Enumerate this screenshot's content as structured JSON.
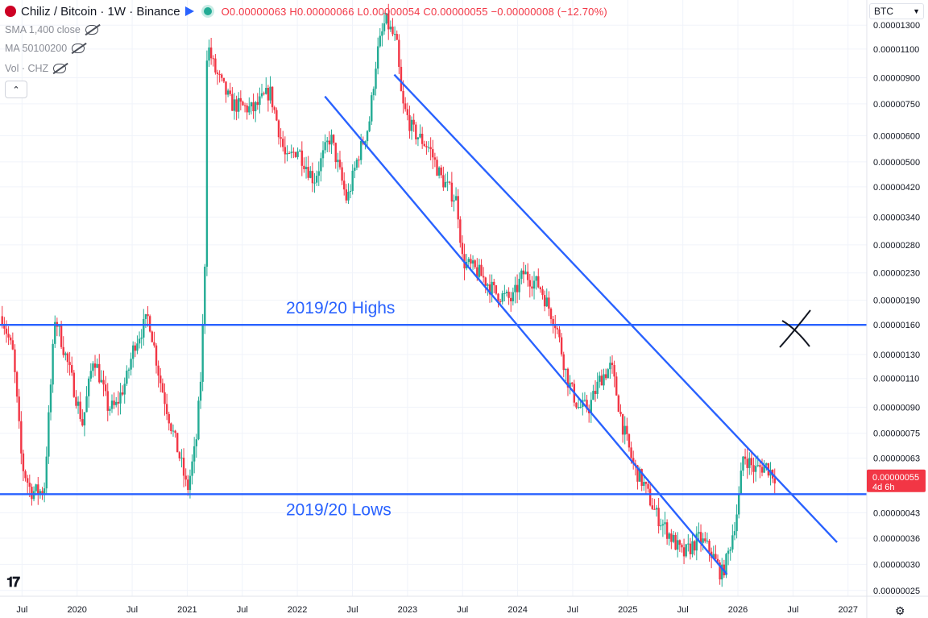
{
  "header": {
    "title": "Chiliz / Bitcoin · 1W · Binance",
    "ohlc": "O0.00000063 H0.00000066 L0.00000054 C0.00000055 −0.00000008 (−12.70%)"
  },
  "indicators": [
    "SMA 1,400 close",
    "MA 50100200",
    "Vol · CHZ"
  ],
  "currency": "BTC",
  "price_label": {
    "value": "0.00000055",
    "countdown": "4d 6h"
  },
  "colors": {
    "up": "#22ab94",
    "down": "#f23645",
    "lines": "#2962ff",
    "text": "#131722",
    "grid": "#f0f3fa"
  },
  "icons": [
    "chiliz-logo-icon",
    "flag-icon",
    "status-dot-icon",
    "eye-off-icon",
    "chevron-up-icon",
    "chevron-down-icon",
    "tradingview-logo-icon",
    "settings-icon"
  ],
  "chart_data": {
    "type": "candlestick",
    "title": "Chiliz / Bitcoin · 1W · Binance",
    "log_scale": true,
    "y_ticks": [
      2.5e-07,
      3e-07,
      3.6e-07,
      4.3e-07,
      6.3e-07,
      7.5e-07,
      9e-07,
      1.1e-06,
      1.3e-06,
      1.6e-06,
      1.9e-06,
      2.3e-06,
      2.8e-06,
      3.4e-06,
      4.2e-06,
      5e-06,
      6e-06,
      7.5e-06,
      9e-06,
      1.1e-05,
      1.3e-05
    ],
    "y_tick_labels": [
      "0.00000025",
      "0.00000030",
      "0.00000036",
      "0.00000043",
      "0.00000063",
      "0.00000075",
      "0.00000090",
      "0.00000110",
      "0.00000130",
      "0.00000160",
      "0.00000190",
      "0.00000230",
      "0.00000280",
      "0.00000340",
      "0.00000420",
      "0.00000500",
      "0.00000600",
      "0.00000750",
      "0.00000900",
      "0.00001100",
      "0.00001300"
    ],
    "x_ticks": [
      2019.5,
      2020.0,
      2020.5,
      2021.0,
      2021.5,
      2022.0,
      2022.5,
      2023.0,
      2023.5,
      2024.0,
      2024.5,
      2025.0,
      2025.5,
      2026.0,
      2026.5,
      2027.0
    ],
    "x_tick_labels": [
      "Jul",
      "2020",
      "Jul",
      "2021",
      "Jul",
      "2022",
      "Jul",
      "2023",
      "Jul",
      "2024",
      "Jul",
      "2025",
      "Jul",
      "2026",
      "Jul",
      "2027"
    ],
    "xlim": [
      2019.3,
      2027.17
    ],
    "ylim": [
      2.4e-07,
      1.55e-05
    ],
    "trace": [
      [
        2019.32,
        1.7e-06
      ],
      [
        2019.42,
        1.3e-06
      ],
      [
        2019.5,
        6e-07
      ],
      [
        2019.58,
        5e-07
      ],
      [
        2019.7,
        5e-07
      ],
      [
        2019.8,
        1.7e-06
      ],
      [
        2019.95,
        1.1e-06
      ],
      [
        2020.05,
        8e-07
      ],
      [
        2020.15,
        1.3e-06
      ],
      [
        2020.28,
        9e-07
      ],
      [
        2020.35,
        9e-07
      ],
      [
        2020.45,
        1.1e-06
      ],
      [
        2020.52,
        1.4e-06
      ],
      [
        2020.65,
        1.7e-06
      ],
      [
        2020.75,
        1.1e-06
      ],
      [
        2020.85,
        8e-07
      ],
      [
        2020.95,
        6e-07
      ],
      [
        2021.0,
        5e-07
      ],
      [
        2021.08,
        7e-07
      ],
      [
        2021.13,
        1.2e-06
      ],
      [
        2021.16,
        2.5e-06
      ],
      [
        2021.18,
        1.15e-05
      ],
      [
        2021.25,
        9.5e-06
      ],
      [
        2021.4,
        7.5e-06
      ],
      [
        2021.6,
        7.2e-06
      ],
      [
        2021.75,
        8.2e-06
      ],
      [
        2021.9,
        5e-06
      ],
      [
        2022.0,
        5.5e-06
      ],
      [
        2022.15,
        4.4e-06
      ],
      [
        2022.3,
        6e-06
      ],
      [
        2022.45,
        3.8e-06
      ],
      [
        2022.55,
        5.2e-06
      ],
      [
        2022.65,
        6.5e-06
      ],
      [
        2022.72,
        1.05e-05
      ],
      [
        2022.8,
        1.35e-05
      ],
      [
        2022.9,
        1.15e-05
      ],
      [
        2022.95,
        7.5e-06
      ],
      [
        2023.05,
        6.2e-06
      ],
      [
        2023.2,
        5.5e-06
      ],
      [
        2023.3,
        4.5e-06
      ],
      [
        2023.45,
        3.8e-06
      ],
      [
        2023.5,
        2.5e-06
      ],
      [
        2023.65,
        2.3e-06
      ],
      [
        2023.8,
        2e-06
      ],
      [
        2023.95,
        1.9e-06
      ],
      [
        2024.05,
        2.3e-06
      ],
      [
        2024.2,
        2.1e-06
      ],
      [
        2024.35,
        1.6e-06
      ],
      [
        2024.45,
        1.1e-06
      ],
      [
        2024.55,
        9e-07
      ],
      [
        2024.65,
        9e-07
      ],
      [
        2024.75,
        1.1e-06
      ],
      [
        2024.85,
        1.2e-06
      ],
      [
        2024.95,
        8e-07
      ],
      [
        2025.05,
        6e-07
      ],
      [
        2025.15,
        5.2e-07
      ],
      [
        2025.25,
        4.3e-07
      ],
      [
        2025.4,
        3.6e-07
      ],
      [
        2025.5,
        3.2e-07
      ],
      [
        2025.65,
        3.6e-07
      ],
      [
        2025.75,
        3.3e-07
      ],
      [
        2025.85,
        2.8e-07
      ],
      [
        2025.9,
        3.1e-07
      ],
      [
        2025.95,
        3.7e-07
      ],
      [
        2026.0,
        4.5e-07
      ],
      [
        2026.05,
        6.5e-07
      ],
      [
        2026.15,
        5.8e-07
      ],
      [
        2026.25,
        6e-07
      ],
      [
        2026.35,
        5.5e-07
      ]
    ],
    "annotations": [
      {
        "text": "2019/20 Highs",
        "y": 1.6e-06
      },
      {
        "text": "2019/20 Lows",
        "y": 4.9e-07
      }
    ],
    "lines": [
      {
        "name": "highs",
        "x": [
          2019.3,
          2027.17
        ],
        "y": [
          1.6e-06,
          1.6e-06
        ]
      },
      {
        "name": "lows",
        "x": [
          2019.3,
          2027.17
        ],
        "y": [
          4.9e-07,
          4.9e-07
        ]
      },
      {
        "name": "channel-lower",
        "x": [
          2022.25,
          2025.9
        ],
        "y": [
          7.9e-06,
          2.8e-07
        ]
      },
      {
        "name": "channel-upper",
        "x": [
          2022.88,
          2026.9
        ],
        "y": [
          9.2e-06,
          3.5e-07
        ]
      }
    ],
    "current_price": 5.5e-07
  }
}
